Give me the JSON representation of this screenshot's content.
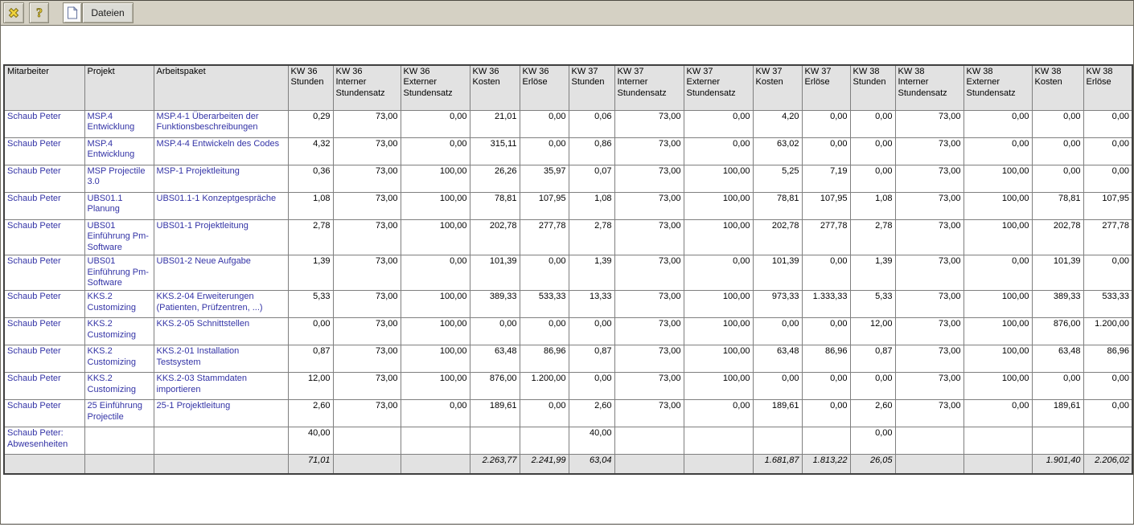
{
  "toolbar": {
    "icons": [
      "close-icon",
      "help-icon",
      "document-icon"
    ],
    "dateien_label": "Dateien"
  },
  "colors": {
    "toolbar_bg": "#d5d1c4",
    "header_bg": "#e2e2e2",
    "totals_bg": "#e2e2e2",
    "link_text": "#3333a6",
    "icon_gold": "#f2d43c",
    "table_border": "#3f3f3f"
  },
  "table": {
    "columns": [
      "Mitarbeiter",
      "Projekt",
      "Arbeitspaket",
      "KW 36\nStunden",
      "KW 36\nInterner\nStundensatz",
      "KW 36\nExterner\nStundensatz",
      "KW 36\nKosten",
      "KW 36\nErlöse",
      "KW 37\nStunden",
      "KW 37\nInterner\nStundensatz",
      "KW 37\nExterner\nStundensatz",
      "KW 37\nKosten",
      "KW 37\nErlöse",
      "KW 38\nStunden",
      "KW 38\nInterner\nStundensatz",
      "KW 38\nExterner\nStundensatz",
      "KW 38\nKosten",
      "KW 38\nErlöse"
    ],
    "rows": [
      {
        "mitarbeiter": "Schaub Peter",
        "projekt": "MSP.4 Entwicklung",
        "arbeitspaket": "MSP.4-1 Überarbeiten der Funktionsbeschreibungen",
        "values": [
          "0,29",
          "73,00",
          "0,00",
          "21,01",
          "0,00",
          "0,06",
          "73,00",
          "0,00",
          "4,20",
          "0,00",
          "0,00",
          "73,00",
          "0,00",
          "0,00",
          "0,00"
        ]
      },
      {
        "mitarbeiter": "Schaub Peter",
        "projekt": "MSP.4 Entwicklung",
        "arbeitspaket": "MSP.4-4 Entwickeln des Codes",
        "values": [
          "4,32",
          "73,00",
          "0,00",
          "315,11",
          "0,00",
          "0,86",
          "73,00",
          "0,00",
          "63,02",
          "0,00",
          "0,00",
          "73,00",
          "0,00",
          "0,00",
          "0,00"
        ]
      },
      {
        "mitarbeiter": "Schaub Peter",
        "projekt": "MSP Projectile 3.0",
        "arbeitspaket": "MSP-1 Projektleitung",
        "values": [
          "0,36",
          "73,00",
          "100,00",
          "26,26",
          "35,97",
          "0,07",
          "73,00",
          "100,00",
          "5,25",
          "7,19",
          "0,00",
          "73,00",
          "100,00",
          "0,00",
          "0,00"
        ]
      },
      {
        "mitarbeiter": "Schaub Peter",
        "projekt": "UBS01.1 Planung",
        "arbeitspaket": "UBS01.1-1 Konzeptgespräche",
        "values": [
          "1,08",
          "73,00",
          "100,00",
          "78,81",
          "107,95",
          "1,08",
          "73,00",
          "100,00",
          "78,81",
          "107,95",
          "1,08",
          "73,00",
          "100,00",
          "78,81",
          "107,95"
        ]
      },
      {
        "mitarbeiter": "Schaub Peter",
        "projekt": "UBS01 Einführung Pm-Software",
        "arbeitspaket": "UBS01-1 Projektleitung",
        "values": [
          "2,78",
          "73,00",
          "100,00",
          "202,78",
          "277,78",
          "2,78",
          "73,00",
          "100,00",
          "202,78",
          "277,78",
          "2,78",
          "73,00",
          "100,00",
          "202,78",
          "277,78"
        ]
      },
      {
        "mitarbeiter": "Schaub Peter",
        "projekt": "UBS01 Einführung Pm-Software",
        "arbeitspaket": "UBS01-2 Neue Aufgabe",
        "values": [
          "1,39",
          "73,00",
          "0,00",
          "101,39",
          "0,00",
          "1,39",
          "73,00",
          "0,00",
          "101,39",
          "0,00",
          "1,39",
          "73,00",
          "0,00",
          "101,39",
          "0,00"
        ]
      },
      {
        "mitarbeiter": "Schaub Peter",
        "projekt": "KKS.2 Customizing",
        "arbeitspaket": "KKS.2-04 Erweiterungen (Patienten, Prüfzentren, ...)",
        "values": [
          "5,33",
          "73,00",
          "100,00",
          "389,33",
          "533,33",
          "13,33",
          "73,00",
          "100,00",
          "973,33",
          "1.333,33",
          "5,33",
          "73,00",
          "100,00",
          "389,33",
          "533,33"
        ]
      },
      {
        "mitarbeiter": "Schaub Peter",
        "projekt": "KKS.2 Customizing",
        "arbeitspaket": "KKS.2-05 Schnittstellen",
        "values": [
          "0,00",
          "73,00",
          "100,00",
          "0,00",
          "0,00",
          "0,00",
          "73,00",
          "100,00",
          "0,00",
          "0,00",
          "12,00",
          "73,00",
          "100,00",
          "876,00",
          "1.200,00"
        ]
      },
      {
        "mitarbeiter": "Schaub Peter",
        "projekt": "KKS.2 Customizing",
        "arbeitspaket": "KKS.2-01 Installation Testsystem",
        "values": [
          "0,87",
          "73,00",
          "100,00",
          "63,48",
          "86,96",
          "0,87",
          "73,00",
          "100,00",
          "63,48",
          "86,96",
          "0,87",
          "73,00",
          "100,00",
          "63,48",
          "86,96"
        ]
      },
      {
        "mitarbeiter": "Schaub Peter",
        "projekt": "KKS.2 Customizing",
        "arbeitspaket": "KKS.2-03 Stammdaten importieren",
        "values": [
          "12,00",
          "73,00",
          "100,00",
          "876,00",
          "1.200,00",
          "0,00",
          "73,00",
          "100,00",
          "0,00",
          "0,00",
          "0,00",
          "73,00",
          "100,00",
          "0,00",
          "0,00"
        ]
      },
      {
        "mitarbeiter": "Schaub Peter",
        "projekt": "25 Einführung Projectile",
        "arbeitspaket": "25-1 Projektleitung",
        "values": [
          "2,60",
          "73,00",
          "0,00",
          "189,61",
          "0,00",
          "2,60",
          "73,00",
          "0,00",
          "189,61",
          "0,00",
          "2,60",
          "73,00",
          "0,00",
          "189,61",
          "0,00"
        ]
      },
      {
        "mitarbeiter": "Schaub Peter: Abwesenheiten",
        "projekt": "",
        "arbeitspaket": "",
        "values": [
          "40,00",
          "",
          "",
          "",
          "",
          "40,00",
          "",
          "",
          "",
          "",
          "0,00",
          "",
          "",
          "",
          ""
        ]
      }
    ],
    "totals": {
      "values": [
        "71,01",
        "",
        "",
        "2.263,77",
        "2.241,99",
        "63,04",
        "",
        "",
        "1.681,87",
        "1.813,22",
        "26,05",
        "",
        "",
        "1.901,40",
        "2.206,02"
      ]
    }
  }
}
